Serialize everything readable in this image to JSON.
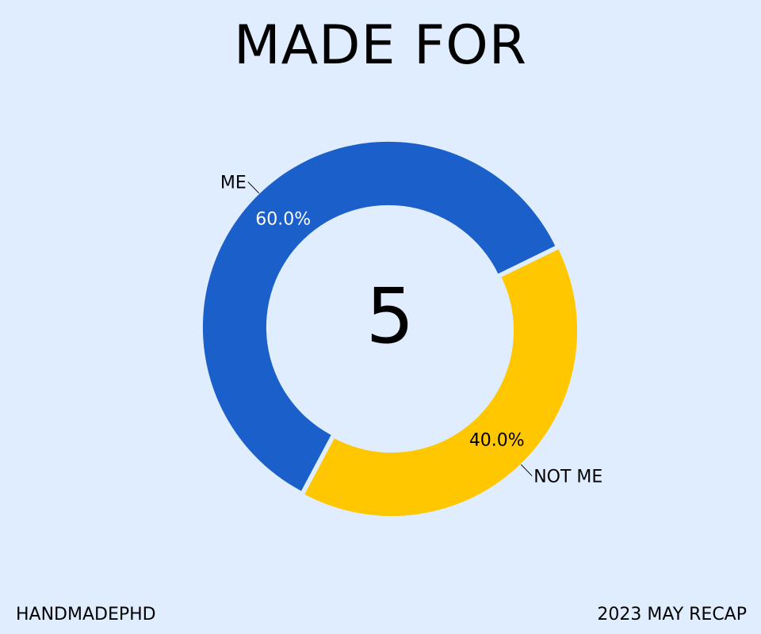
{
  "title": "MADE FOR",
  "footer": {
    "left": "HANDMADEPHD",
    "right": "2023 MAY RECAP"
  },
  "chart_data": {
    "type": "pie",
    "donut": true,
    "center_label": "5",
    "slices": [
      {
        "label": "NOT ME",
        "value": 40.0,
        "pct_label": "40.0%",
        "color": "#ffc700",
        "pct_color": "#000000"
      },
      {
        "label": "ME",
        "value": 60.0,
        "pct_label": "60.0%",
        "color": "#1b5fcb",
        "pct_color": "#ffffff"
      }
    ],
    "start_angle_deg": 64,
    "direction": "clockwise",
    "background": "#e0edff"
  }
}
